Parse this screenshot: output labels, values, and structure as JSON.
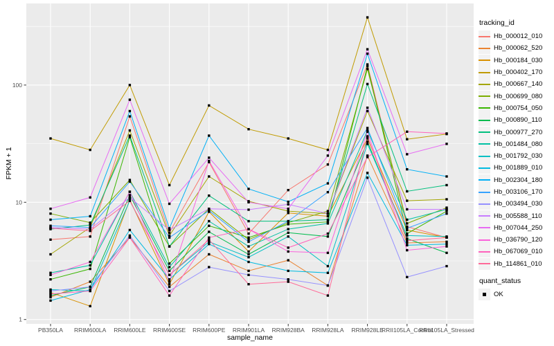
{
  "figure": {
    "background": "#FFFFFF",
    "panel_bg": "#EBEBEB",
    "grid_color": "#FFFFFF",
    "tick_text_color": "#4D4D4D",
    "tick_mark_color": "#333333",
    "title_text_color": "#000000"
  },
  "chart_data": {
    "type": "line",
    "title": "",
    "xlabel": "sample_name",
    "ylabel": "FPKM + 1",
    "y_scale": "log10",
    "y_ticks": [
      1,
      10,
      100
    ],
    "y_minor_breaks": [
      3.162,
      31.62,
      316.2
    ],
    "ylim_log10": [
      0,
      2.7
    ],
    "grid": true,
    "legend_position": "right",
    "point_shape": "filled-square",
    "point_color": "#000000",
    "categories": [
      "PB350LA",
      "RRIM600LA",
      "RRIM600LE",
      "RRIM600SE",
      "RRIM600PE",
      "RRIM901LA",
      "RRIM928BA",
      "RRIM928LA",
      "RRIM928LE",
      "RRII105LA_Control",
      "RRII105LA_Stressed"
    ],
    "series": [
      {
        "name": "Hb_000012_010",
        "color": "#F8766D",
        "values": [
          4.8,
          5.1,
          54,
          5.5,
          22,
          5.4,
          12.7,
          21,
          150,
          6.2,
          5.0
        ]
      },
      {
        "name": "Hb_000062_520",
        "color": "#EA8331",
        "values": [
          1.55,
          2.1,
          5.0,
          1.9,
          3.6,
          2.6,
          3.2,
          1.95,
          25,
          4.5,
          4.6
        ]
      },
      {
        "name": "Hb_000184_030",
        "color": "#D89000",
        "values": [
          1.7,
          1.3,
          10.5,
          2.0,
          8.3,
          3.8,
          8.1,
          7.6,
          35,
          5.8,
          5.0
        ]
      },
      {
        "name": "Hb_000402_170",
        "color": "#C09B00",
        "values": [
          35,
          28,
          100,
          14,
          67,
          42,
          35,
          28,
          378,
          34.5,
          38.2
        ]
      },
      {
        "name": "Hb_000667_140",
        "color": "#A3A500",
        "values": [
          3.6,
          6.1,
          41,
          5.2,
          16.6,
          10.2,
          8.4,
          8.0,
          60,
          10.3,
          10.6
        ]
      },
      {
        "name": "Hb_000699_080",
        "color": "#7CAE00",
        "values": [
          8.0,
          6.7,
          15.5,
          4.2,
          8.8,
          4.8,
          6.7,
          8.4,
          137,
          6.6,
          9.0
        ]
      },
      {
        "name": "Hb_000754_050",
        "color": "#39B600",
        "values": [
          2.2,
          2.7,
          36,
          3.0,
          6.3,
          5.0,
          6.5,
          6.8,
          145,
          5.4,
          8.4
        ]
      },
      {
        "name": "Hb_000890_110",
        "color": "#00BB4E",
        "values": [
          1.6,
          1.9,
          11.5,
          2.6,
          5.6,
          3.6,
          5.5,
          5.1,
          33,
          4.9,
          3.7
        ]
      },
      {
        "name": "Hb_000977_270",
        "color": "#00BF7D",
        "values": [
          5.9,
          6.4,
          37,
          4.2,
          11.4,
          6.9,
          6.9,
          7.1,
          102,
          12.4,
          14
        ]
      },
      {
        "name": "Hb_001484_080",
        "color": "#00C1A3",
        "values": [
          2.5,
          2.9,
          12.3,
          2.8,
          6.9,
          4.2,
          5.9,
          6.6,
          41,
          7.1,
          8.7
        ]
      },
      {
        "name": "Hb_001792_030",
        "color": "#00BFC4",
        "values": [
          1.8,
          1.75,
          10.3,
          2.4,
          4.6,
          3.4,
          5.1,
          2.85,
          31.5,
          5.2,
          5.1
        ]
      },
      {
        "name": "Hb_001889_010",
        "color": "#00BAE0",
        "values": [
          1.45,
          1.8,
          5.8,
          2.2,
          4.4,
          3.1,
          2.6,
          2.5,
          17.8,
          4.3,
          4.4
        ]
      },
      {
        "name": "Hb_002304_180",
        "color": "#00B0F6",
        "values": [
          7.1,
          7.6,
          60,
          6.0,
          37,
          13,
          10.1,
          14.5,
          185,
          19.1,
          16.6
        ]
      },
      {
        "name": "Hb_003106_170",
        "color": "#35A2FF",
        "values": [
          6.3,
          6.1,
          15,
          5.0,
          8.5,
          4.6,
          6.9,
          12.2,
          43,
          6.0,
          8.0
        ]
      },
      {
        "name": "Hb_003494_030",
        "color": "#9590FF",
        "values": [
          1.75,
          1.9,
          5.2,
          1.75,
          2.8,
          2.4,
          2.2,
          1.95,
          16.2,
          2.3,
          2.85
        ]
      },
      {
        "name": "Hb_005588_110",
        "color": "#C77CFF",
        "values": [
          6.1,
          5.9,
          11,
          5.8,
          8.8,
          8.65,
          9.6,
          8.0,
          64,
          8.7,
          8.7
        ]
      },
      {
        "name": "Hb_007044_250",
        "color": "#E76BF3",
        "values": [
          8.8,
          11,
          75,
          9.7,
          24,
          10,
          8.8,
          25,
          202,
          25.7,
          31.5
        ]
      },
      {
        "name": "Hb_036790_120",
        "color": "#FA62DB",
        "values": [
          2.4,
          3.1,
          12.3,
          2.1,
          22.5,
          5.9,
          3.8,
          3.7,
          40,
          3.9,
          4.2
        ]
      },
      {
        "name": "Hb_067069_010",
        "color": "#FF62BC",
        "values": [
          1.65,
          1.75,
          5.0,
          1.6,
          5.0,
          5.9,
          4.1,
          5.4,
          24.3,
          40,
          38.6
        ]
      },
      {
        "name": "Hb_114861_010",
        "color": "#FF6A98",
        "values": [
          6.0,
          5.7,
          10.3,
          2.4,
          4.8,
          2.0,
          2.1,
          1.6,
          36.5,
          4.7,
          5.0
        ]
      }
    ]
  },
  "legend": {
    "tracking_title": "tracking_id",
    "quant_title": "quant_status",
    "quant_items": [
      {
        "label": "OK"
      }
    ],
    "key_bg": "#F2F2F2"
  }
}
